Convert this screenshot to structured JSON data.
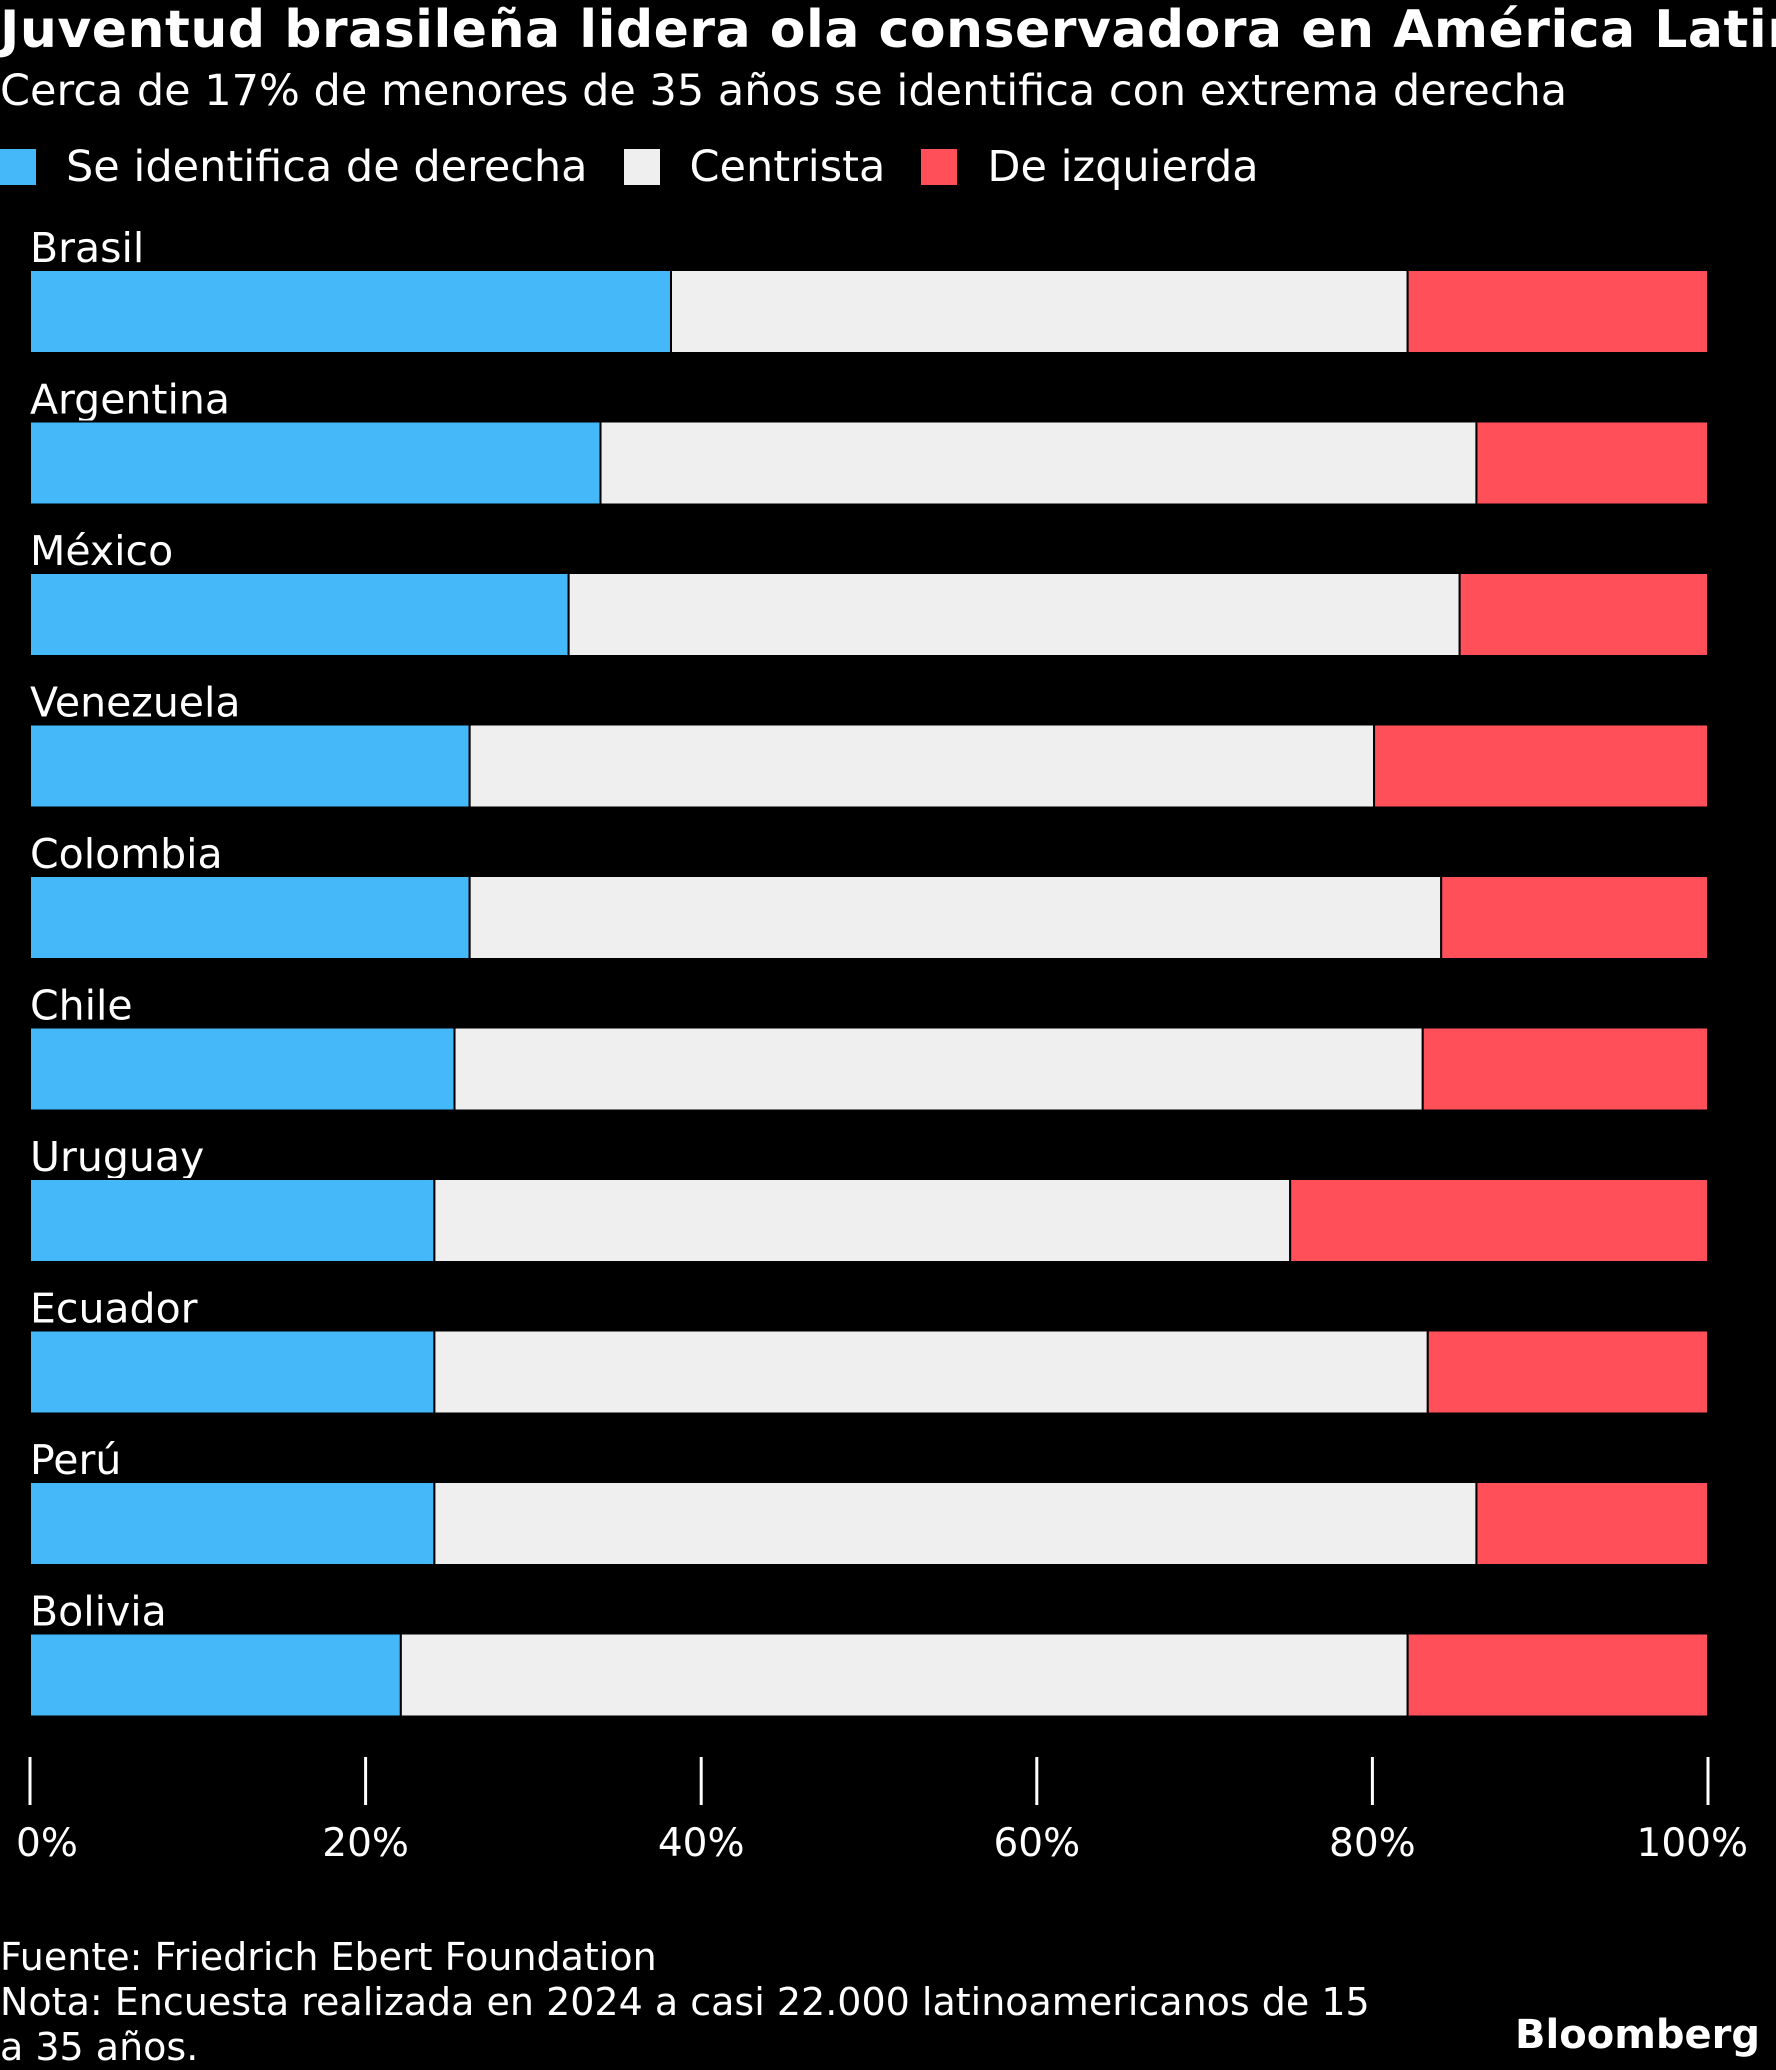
{
  "chart_data": {
    "type": "bar",
    "orientation": "horizontal",
    "stacked": true,
    "title": "Juventud brasileña lidera ola conservadora en América Latina",
    "subtitle": "Cerca de 17% de menores de 35 años se identifica con extrema derecha",
    "categories": [
      "Brasil",
      "Argentina",
      "México",
      "Venezuela",
      "Colombia",
      "Chile",
      "Uruguay",
      "Ecuador",
      "Perú",
      "Bolivia"
    ],
    "series": [
      {
        "name": "Se identifica de derecha",
        "color": "#44b8f9",
        "values": [
          38.2,
          34,
          32.1,
          26.2,
          26.2,
          25.3,
          24.1,
          24.1,
          24.1,
          22.1
        ]
      },
      {
        "name": "Centrista",
        "color": "#efefef",
        "values": [
          43.9,
          52.2,
          53.1,
          53.9,
          57.9,
          57.7,
          51.0,
          59.2,
          62.1,
          60.0
        ]
      },
      {
        "name": "De izquierda",
        "color": "#ff505a",
        "values": [
          17.9,
          13.8,
          14.8,
          19.9,
          15.9,
          17.0,
          24.9,
          16.7,
          13.8,
          17.9
        ]
      }
    ],
    "xlim": [
      0,
      100
    ],
    "xticks": [
      "0%",
      "20%",
      "40%",
      "60%",
      "80%",
      "100%"
    ],
    "xlabel": "",
    "ylabel": ""
  },
  "footer": {
    "source": "Fuente: Friedrich Ebert Foundation",
    "note": "Nota: Encuesta realizada en 2024 a casi 22.000 latinoamericanos de 15 a 35 años.",
    "brand": "Bloomberg"
  }
}
